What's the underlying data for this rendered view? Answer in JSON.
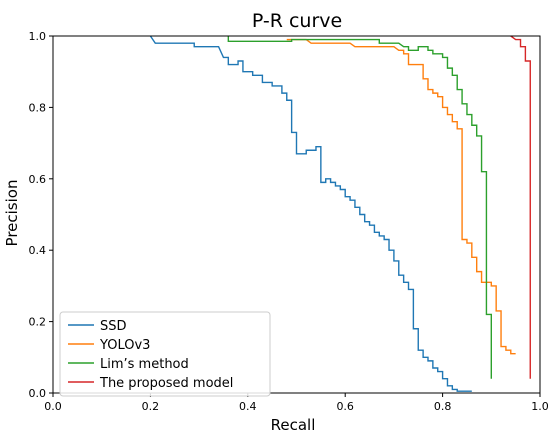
{
  "chart_data": {
    "type": "line",
    "title": "P-R curve",
    "xlabel": "Recall",
    "ylabel": "Precision",
    "xlim": [
      0.0,
      1.0
    ],
    "ylim": [
      0.0,
      1.0
    ],
    "xticks": [
      "0.0",
      "0.2",
      "0.4",
      "0.6",
      "0.8",
      "1.0"
    ],
    "yticks": [
      "0.0",
      "0.2",
      "0.4",
      "0.6",
      "0.8",
      "1.0"
    ],
    "grid": false,
    "legend_position": "lower-left",
    "series": [
      {
        "name": "SSD",
        "color": "#1f77b4",
        "points": [
          [
            0.2,
            1.0
          ],
          [
            0.21,
            0.98
          ],
          [
            0.29,
            0.98
          ],
          [
            0.29,
            0.97
          ],
          [
            0.34,
            0.97
          ],
          [
            0.35,
            0.94
          ],
          [
            0.36,
            0.94
          ],
          [
            0.36,
            0.92
          ],
          [
            0.38,
            0.92
          ],
          [
            0.38,
            0.93
          ],
          [
            0.39,
            0.93
          ],
          [
            0.39,
            0.9
          ],
          [
            0.41,
            0.9
          ],
          [
            0.41,
            0.89
          ],
          [
            0.43,
            0.89
          ],
          [
            0.43,
            0.87
          ],
          [
            0.45,
            0.87
          ],
          [
            0.45,
            0.86
          ],
          [
            0.47,
            0.86
          ],
          [
            0.47,
            0.84
          ],
          [
            0.48,
            0.84
          ],
          [
            0.48,
            0.82
          ],
          [
            0.49,
            0.82
          ],
          [
            0.49,
            0.73
          ],
          [
            0.5,
            0.73
          ],
          [
            0.5,
            0.67
          ],
          [
            0.52,
            0.67
          ],
          [
            0.52,
            0.68
          ],
          [
            0.54,
            0.68
          ],
          [
            0.54,
            0.69
          ],
          [
            0.55,
            0.69
          ],
          [
            0.55,
            0.59
          ],
          [
            0.56,
            0.59
          ],
          [
            0.56,
            0.6
          ],
          [
            0.57,
            0.6
          ],
          [
            0.57,
            0.59
          ],
          [
            0.58,
            0.59
          ],
          [
            0.58,
            0.58
          ],
          [
            0.59,
            0.58
          ],
          [
            0.59,
            0.57
          ],
          [
            0.6,
            0.57
          ],
          [
            0.6,
            0.55
          ],
          [
            0.61,
            0.55
          ],
          [
            0.61,
            0.54
          ],
          [
            0.62,
            0.54
          ],
          [
            0.62,
            0.52
          ],
          [
            0.63,
            0.52
          ],
          [
            0.63,
            0.5
          ],
          [
            0.64,
            0.5
          ],
          [
            0.64,
            0.48
          ],
          [
            0.65,
            0.48
          ],
          [
            0.65,
            0.47
          ],
          [
            0.66,
            0.47
          ],
          [
            0.66,
            0.45
          ],
          [
            0.67,
            0.45
          ],
          [
            0.67,
            0.44
          ],
          [
            0.68,
            0.44
          ],
          [
            0.68,
            0.43
          ],
          [
            0.69,
            0.43
          ],
          [
            0.69,
            0.4
          ],
          [
            0.7,
            0.4
          ],
          [
            0.7,
            0.37
          ],
          [
            0.71,
            0.37
          ],
          [
            0.71,
            0.33
          ],
          [
            0.72,
            0.33
          ],
          [
            0.72,
            0.31
          ],
          [
            0.73,
            0.31
          ],
          [
            0.73,
            0.29
          ],
          [
            0.74,
            0.29
          ],
          [
            0.74,
            0.18
          ],
          [
            0.75,
            0.18
          ],
          [
            0.75,
            0.12
          ],
          [
            0.76,
            0.12
          ],
          [
            0.76,
            0.1
          ],
          [
            0.77,
            0.1
          ],
          [
            0.77,
            0.09
          ],
          [
            0.78,
            0.09
          ],
          [
            0.78,
            0.07
          ],
          [
            0.79,
            0.07
          ],
          [
            0.79,
            0.06
          ],
          [
            0.8,
            0.06
          ],
          [
            0.8,
            0.04
          ],
          [
            0.81,
            0.04
          ],
          [
            0.81,
            0.02
          ],
          [
            0.82,
            0.02
          ],
          [
            0.82,
            0.01
          ],
          [
            0.83,
            0.01
          ],
          [
            0.83,
            0.005
          ],
          [
            0.86,
            0.005
          ]
        ]
      },
      {
        "name": "YOLOv3",
        "color": "#ff7f0e",
        "points": [
          [
            0.48,
            0.99
          ],
          [
            0.52,
            0.99
          ],
          [
            0.53,
            0.98
          ],
          [
            0.61,
            0.98
          ],
          [
            0.62,
            0.97
          ],
          [
            0.7,
            0.97
          ],
          [
            0.71,
            0.96
          ],
          [
            0.72,
            0.96
          ],
          [
            0.72,
            0.95
          ],
          [
            0.73,
            0.95
          ],
          [
            0.73,
            0.92
          ],
          [
            0.76,
            0.92
          ],
          [
            0.76,
            0.88
          ],
          [
            0.77,
            0.88
          ],
          [
            0.77,
            0.85
          ],
          [
            0.78,
            0.85
          ],
          [
            0.78,
            0.84
          ],
          [
            0.79,
            0.84
          ],
          [
            0.79,
            0.83
          ],
          [
            0.8,
            0.83
          ],
          [
            0.8,
            0.8
          ],
          [
            0.81,
            0.8
          ],
          [
            0.81,
            0.78
          ],
          [
            0.82,
            0.78
          ],
          [
            0.82,
            0.76
          ],
          [
            0.83,
            0.76
          ],
          [
            0.83,
            0.74
          ],
          [
            0.84,
            0.74
          ],
          [
            0.84,
            0.43
          ],
          [
            0.85,
            0.43
          ],
          [
            0.85,
            0.42
          ],
          [
            0.86,
            0.42
          ],
          [
            0.86,
            0.38
          ],
          [
            0.87,
            0.38
          ],
          [
            0.87,
            0.34
          ],
          [
            0.88,
            0.34
          ],
          [
            0.88,
            0.31
          ],
          [
            0.9,
            0.31
          ],
          [
            0.9,
            0.3
          ],
          [
            0.91,
            0.3
          ],
          [
            0.91,
            0.23
          ],
          [
            0.92,
            0.23
          ],
          [
            0.92,
            0.13
          ],
          [
            0.93,
            0.13
          ],
          [
            0.93,
            0.12
          ],
          [
            0.94,
            0.12
          ],
          [
            0.94,
            0.11
          ],
          [
            0.95,
            0.11
          ]
        ]
      },
      {
        "name": "Lim’s method",
        "color": "#2ca02c",
        "points": [
          [
            0.36,
            1.0
          ],
          [
            0.36,
            0.985
          ],
          [
            0.49,
            0.985
          ],
          [
            0.49,
            0.99
          ],
          [
            0.67,
            0.99
          ],
          [
            0.67,
            0.98
          ],
          [
            0.71,
            0.98
          ],
          [
            0.72,
            0.97
          ],
          [
            0.73,
            0.97
          ],
          [
            0.73,
            0.96
          ],
          [
            0.75,
            0.96
          ],
          [
            0.75,
            0.97
          ],
          [
            0.77,
            0.97
          ],
          [
            0.77,
            0.96
          ],
          [
            0.78,
            0.96
          ],
          [
            0.78,
            0.95
          ],
          [
            0.8,
            0.95
          ],
          [
            0.8,
            0.94
          ],
          [
            0.81,
            0.94
          ],
          [
            0.81,
            0.91
          ],
          [
            0.82,
            0.91
          ],
          [
            0.82,
            0.89
          ],
          [
            0.83,
            0.89
          ],
          [
            0.83,
            0.85
          ],
          [
            0.84,
            0.85
          ],
          [
            0.84,
            0.81
          ],
          [
            0.85,
            0.81
          ],
          [
            0.85,
            0.78
          ],
          [
            0.86,
            0.78
          ],
          [
            0.86,
            0.75
          ],
          [
            0.87,
            0.75
          ],
          [
            0.87,
            0.72
          ],
          [
            0.88,
            0.72
          ],
          [
            0.88,
            0.62
          ],
          [
            0.89,
            0.62
          ],
          [
            0.89,
            0.22
          ],
          [
            0.9,
            0.22
          ],
          [
            0.9,
            0.04
          ]
        ]
      },
      {
        "name": "The proposed model",
        "color": "#d62728",
        "points": [
          [
            0.94,
            1.0
          ],
          [
            0.95,
            0.99
          ],
          [
            0.96,
            0.99
          ],
          [
            0.96,
            0.97
          ],
          [
            0.97,
            0.97
          ],
          [
            0.97,
            0.93
          ],
          [
            0.98,
            0.93
          ],
          [
            0.98,
            0.04
          ]
        ]
      }
    ]
  }
}
